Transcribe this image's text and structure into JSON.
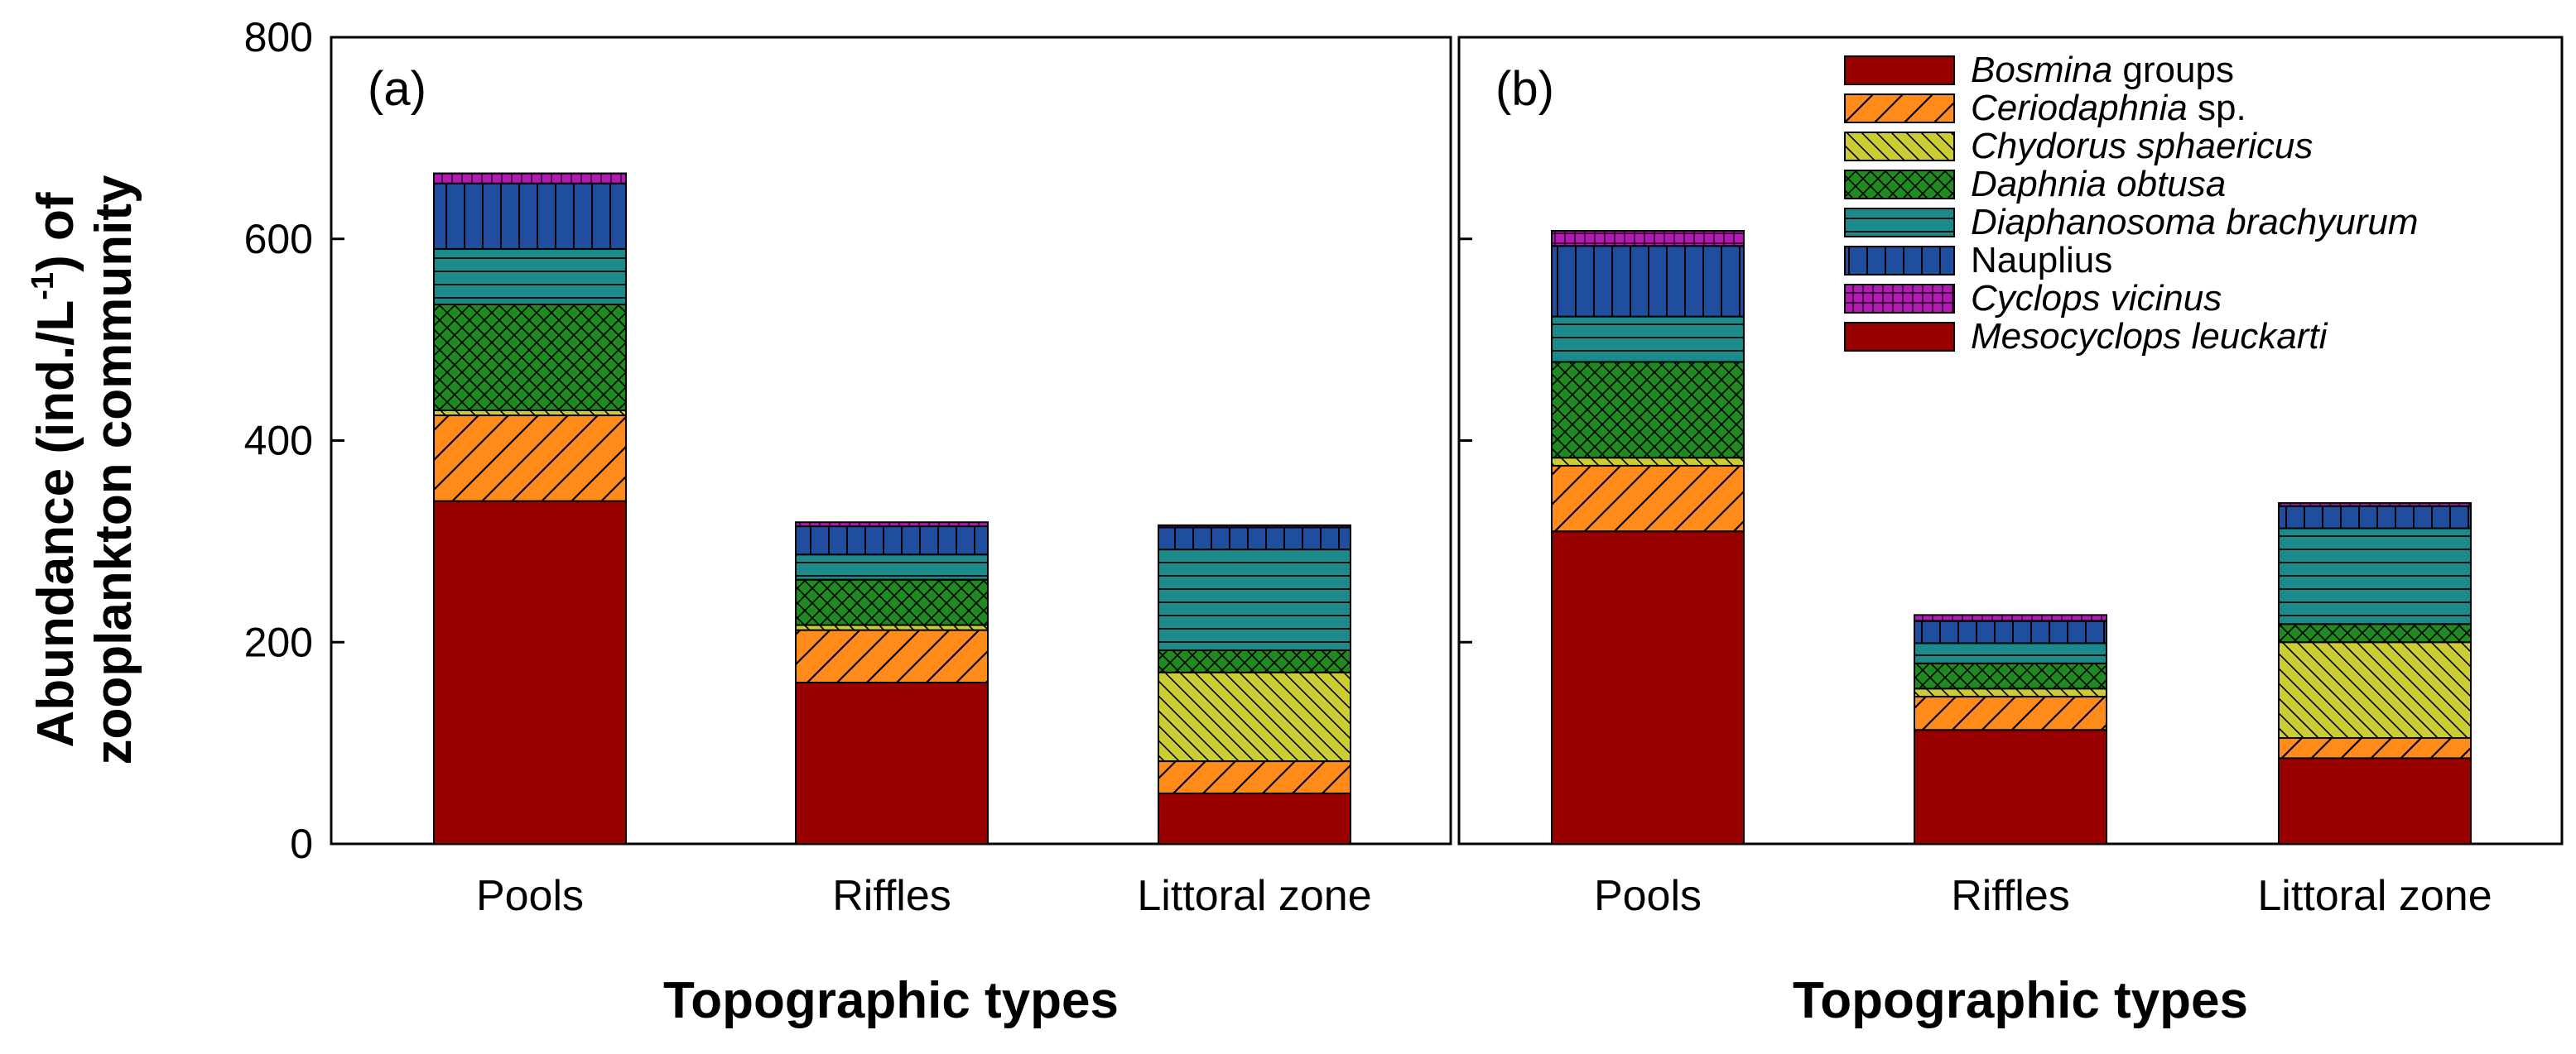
{
  "chart_data": {
    "type": "bar",
    "stacked": true,
    "ylabel": "Abundance (ind./L-1) of zooplankton community",
    "ylabel_parts": {
      "line1_a": "Abundance (ind./L",
      "line1_sup": "-1",
      "line1_b": ") of",
      "line2": "zooplankton community"
    },
    "ylim": [
      0,
      800
    ],
    "yticks": [
      0,
      200,
      400,
      600,
      800
    ],
    "categories": [
      "Pools",
      "Riffles",
      "Littoral zone"
    ],
    "xlabel": "Topographic types",
    "series": [
      {
        "name": "Bosmina groups",
        "italic_part": "Bosmina",
        "plain_part": " groups",
        "color": "#990000",
        "pattern": "solid"
      },
      {
        "name": "Ceriodaphnia sp.",
        "italic_part": "Ceriodaphnia",
        "plain_part": " sp.",
        "color": "#ff8c1a",
        "pattern": "diag-fwd"
      },
      {
        "name": "Chydorus sphaericus",
        "italic_part": "Chydorus sphaericus",
        "plain_part": "",
        "color": "#cccc33",
        "pattern": "diag-back"
      },
      {
        "name": "Daphnia obtusa",
        "italic_part": "Daphnia obtusa",
        "plain_part": "",
        "color": "#1f8a1f",
        "pattern": "crosshatch"
      },
      {
        "name": "Diaphanosoma brachyurum",
        "italic_part": "Diaphanosoma brachyurum",
        "plain_part": "",
        "color": "#1a8a8a",
        "pattern": "horizontal"
      },
      {
        "name": "Nauplius",
        "italic_part": "",
        "plain_part": "Nauplius",
        "color": "#1f4e9e",
        "pattern": "vertical"
      },
      {
        "name": "Cyclops vicinus",
        "italic_part": "Cyclops vicinus",
        "plain_part": "",
        "color": "#b31ab3",
        "pattern": "grid"
      },
      {
        "name": "Mesocyclops leuckarti",
        "italic_part": "Mesocyclops leuckarti",
        "plain_part": "",
        "color": "#990000",
        "pattern": "solid"
      }
    ],
    "panels": [
      {
        "label": "(a)",
        "values": [
          [
            340,
            85,
            5,
            105,
            55,
            65,
            10,
            0
          ],
          [
            160,
            52,
            5,
            45,
            25,
            28,
            4,
            0
          ],
          [
            50,
            32,
            88,
            22,
            100,
            22,
            2,
            0
          ]
        ]
      },
      {
        "label": "(b)",
        "values": [
          [
            310,
            65,
            8,
            95,
            45,
            70,
            15,
            0
          ],
          [
            113,
            33,
            8,
            25,
            20,
            22,
            6,
            0
          ],
          [
            85,
            20,
            95,
            18,
            95,
            22,
            3,
            0
          ]
        ]
      }
    ],
    "legend_position": "top-right"
  }
}
